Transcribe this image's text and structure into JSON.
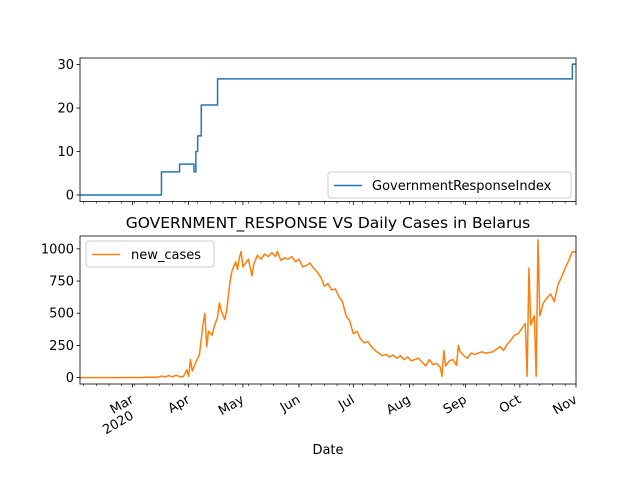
{
  "chart_data": [
    {
      "type": "line",
      "title": "",
      "xlabel": "",
      "ylabel": "",
      "legend": "lower-right",
      "ylim": [
        -1.5,
        31.5
      ],
      "yticks": [
        0,
        10,
        20,
        30
      ],
      "grid": false,
      "series": [
        {
          "name": "GovernmentResponseIndex",
          "color": "#1f77b4",
          "step": true,
          "points": [
            [
              "2020-02-01",
              0
            ],
            [
              "2020-03-17",
              5.3
            ],
            [
              "2020-03-27",
              7.1
            ],
            [
              "2020-04-04",
              5.3
            ],
            [
              "2020-04-05",
              10
            ],
            [
              "2020-04-06",
              13.6
            ],
            [
              "2020-04-08",
              20.7
            ],
            [
              "2020-04-17",
              26.7
            ],
            [
              "2020-10-30",
              30.1
            ],
            [
              "2020-11-01",
              30.1
            ]
          ]
        }
      ]
    },
    {
      "type": "line",
      "title": "GOVERNMENT_RESPONSE VS Daily Cases in Belarus",
      "xlabel": "Date",
      "ylabel": "",
      "legend": "upper-left",
      "ylim": [
        -50,
        1100
      ],
      "yticks": [
        0,
        250,
        500,
        750,
        1000
      ],
      "xticks": [
        {
          "date": "2020-03-01",
          "label": "Mar",
          "sub": "2020"
        },
        {
          "date": "2020-04-01",
          "label": "Apr",
          "sub": ""
        },
        {
          "date": "2020-05-01",
          "label": "May",
          "sub": ""
        },
        {
          "date": "2020-06-01",
          "label": "Jun",
          "sub": ""
        },
        {
          "date": "2020-07-01",
          "label": "Jul",
          "sub": ""
        },
        {
          "date": "2020-08-01",
          "label": "Aug",
          "sub": ""
        },
        {
          "date": "2020-09-01",
          "label": "Sep",
          "sub": ""
        },
        {
          "date": "2020-10-01",
          "label": "Oct",
          "sub": ""
        },
        {
          "date": "2020-11-01",
          "label": "Nov",
          "sub": ""
        }
      ],
      "xlim": [
        "2020-02-01",
        "2020-11-01"
      ],
      "grid": false,
      "series": [
        {
          "name": "new_cases",
          "color": "#ff7f0e",
          "points": [
            [
              "2020-02-01",
              0
            ],
            [
              "2020-02-20",
              0
            ],
            [
              "2020-02-28",
              1
            ],
            [
              "2020-03-05",
              0
            ],
            [
              "2020-03-10",
              3
            ],
            [
              "2020-03-15",
              2
            ],
            [
              "2020-03-17",
              12
            ],
            [
              "2020-03-19",
              4
            ],
            [
              "2020-03-21",
              15
            ],
            [
              "2020-03-23",
              6
            ],
            [
              "2020-03-25",
              18
            ],
            [
              "2020-03-27",
              8
            ],
            [
              "2020-03-29",
              5
            ],
            [
              "2020-03-31",
              60
            ],
            [
              "2020-04-01",
              10
            ],
            [
              "2020-04-02",
              140
            ],
            [
              "2020-04-03",
              50
            ],
            [
              "2020-04-05",
              120
            ],
            [
              "2020-04-07",
              180
            ],
            [
              "2020-04-09",
              420
            ],
            [
              "2020-04-10",
              500
            ],
            [
              "2020-04-11",
              240
            ],
            [
              "2020-04-12",
              360
            ],
            [
              "2020-04-14",
              330
            ],
            [
              "2020-04-15",
              390
            ],
            [
              "2020-04-17",
              470
            ],
            [
              "2020-04-18",
              580
            ],
            [
              "2020-04-19",
              520
            ],
            [
              "2020-04-21",
              450
            ],
            [
              "2020-04-22",
              520
            ],
            [
              "2020-04-23",
              640
            ],
            [
              "2020-04-24",
              760
            ],
            [
              "2020-04-25",
              830
            ],
            [
              "2020-04-27",
              900
            ],
            [
              "2020-04-28",
              840
            ],
            [
              "2020-04-29",
              930
            ],
            [
              "2020-04-30",
              980
            ],
            [
              "2020-05-01",
              860
            ],
            [
              "2020-05-02",
              880
            ],
            [
              "2020-05-04",
              920
            ],
            [
              "2020-05-06",
              790
            ],
            [
              "2020-05-07",
              880
            ],
            [
              "2020-05-09",
              950
            ],
            [
              "2020-05-11",
              920
            ],
            [
              "2020-05-13",
              960
            ],
            [
              "2020-05-15",
              940
            ],
            [
              "2020-05-17",
              970
            ],
            [
              "2020-05-19",
              940
            ],
            [
              "2020-05-20",
              980
            ],
            [
              "2020-05-22",
              910
            ],
            [
              "2020-05-24",
              930
            ],
            [
              "2020-05-26",
              920
            ],
            [
              "2020-05-28",
              940
            ],
            [
              "2020-05-30",
              900
            ],
            [
              "2020-06-01",
              920
            ],
            [
              "2020-06-03",
              860
            ],
            [
              "2020-06-05",
              870
            ],
            [
              "2020-06-07",
              890
            ],
            [
              "2020-06-09",
              850
            ],
            [
              "2020-06-11",
              820
            ],
            [
              "2020-06-13",
              780
            ],
            [
              "2020-06-15",
              710
            ],
            [
              "2020-06-17",
              730
            ],
            [
              "2020-06-19",
              680
            ],
            [
              "2020-06-21",
              690
            ],
            [
              "2020-06-23",
              630
            ],
            [
              "2020-06-25",
              590
            ],
            [
              "2020-06-27",
              480
            ],
            [
              "2020-06-29",
              440
            ],
            [
              "2020-07-01",
              340
            ],
            [
              "2020-07-03",
              360
            ],
            [
              "2020-07-05",
              300
            ],
            [
              "2020-07-07",
              270
            ],
            [
              "2020-07-09",
              280
            ],
            [
              "2020-07-11",
              240
            ],
            [
              "2020-07-13",
              210
            ],
            [
              "2020-07-15",
              190
            ],
            [
              "2020-07-17",
              170
            ],
            [
              "2020-07-19",
              180
            ],
            [
              "2020-07-21",
              160
            ],
            [
              "2020-07-23",
              175
            ],
            [
              "2020-07-25",
              150
            ],
            [
              "2020-07-27",
              170
            ],
            [
              "2020-07-29",
              140
            ],
            [
              "2020-07-31",
              160
            ],
            [
              "2020-08-02",
              130
            ],
            [
              "2020-08-04",
              140
            ],
            [
              "2020-08-06",
              150
            ],
            [
              "2020-08-08",
              120
            ],
            [
              "2020-08-10",
              90
            ],
            [
              "2020-08-12",
              140
            ],
            [
              "2020-08-14",
              100
            ],
            [
              "2020-08-16",
              110
            ],
            [
              "2020-08-18",
              80
            ],
            [
              "2020-08-19",
              10
            ],
            [
              "2020-08-20",
              210
            ],
            [
              "2020-08-21",
              90
            ],
            [
              "2020-08-23",
              130
            ],
            [
              "2020-08-25",
              140
            ],
            [
              "2020-08-27",
              95
            ],
            [
              "2020-08-28",
              250
            ],
            [
              "2020-08-29",
              200
            ],
            [
              "2020-08-31",
              170
            ],
            [
              "2020-09-02",
              150
            ],
            [
              "2020-09-04",
              190
            ],
            [
              "2020-09-06",
              180
            ],
            [
              "2020-09-08",
              190
            ],
            [
              "2020-09-10",
              200
            ],
            [
              "2020-09-12",
              190
            ],
            [
              "2020-09-14",
              195
            ],
            [
              "2020-09-16",
              200
            ],
            [
              "2020-09-18",
              220
            ],
            [
              "2020-09-20",
              240
            ],
            [
              "2020-09-22",
              210
            ],
            [
              "2020-09-24",
              260
            ],
            [
              "2020-09-26",
              290
            ],
            [
              "2020-09-28",
              330
            ],
            [
              "2020-09-30",
              340
            ],
            [
              "2020-10-02",
              380
            ],
            [
              "2020-10-04",
              420
            ],
            [
              "2020-10-05",
              10
            ],
            [
              "2020-10-06",
              850
            ],
            [
              "2020-10-07",
              410
            ],
            [
              "2020-10-09",
              480
            ],
            [
              "2020-10-10",
              10
            ],
            [
              "2020-10-11",
              1070
            ],
            [
              "2020-10-12",
              480
            ],
            [
              "2020-10-14",
              580
            ],
            [
              "2020-10-16",
              620
            ],
            [
              "2020-10-18",
              650
            ],
            [
              "2020-10-20",
              590
            ],
            [
              "2020-10-22",
              720
            ],
            [
              "2020-10-24",
              780
            ],
            [
              "2020-10-26",
              850
            ],
            [
              "2020-10-28",
              910
            ],
            [
              "2020-10-30",
              980
            ],
            [
              "2020-11-01",
              975
            ]
          ]
        }
      ]
    }
  ]
}
